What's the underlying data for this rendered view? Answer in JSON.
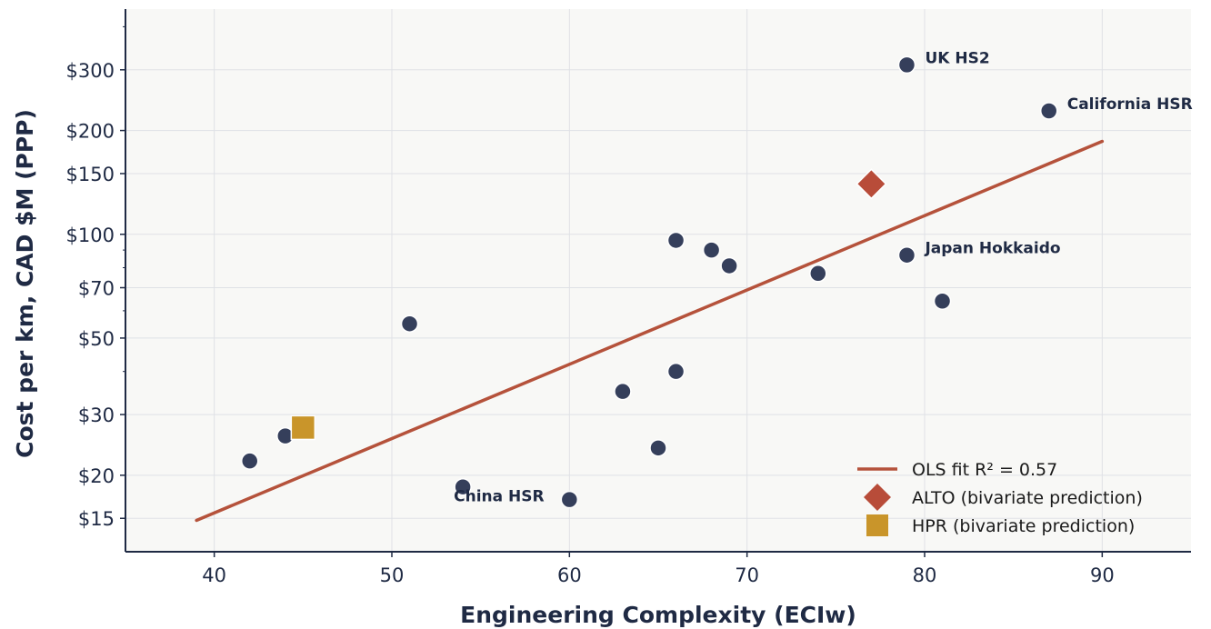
{
  "chart_data": {
    "type": "scatter",
    "title": "",
    "xlabel": "Engineering Complexity  (ECIw)",
    "ylabel": "Cost per km,  CAD $M (PPP)",
    "xlim": [
      35,
      95
    ],
    "ylim": [
      12,
      450
    ],
    "yscale": "log",
    "grid": true,
    "x_ticks": [
      40,
      50,
      60,
      70,
      80,
      90
    ],
    "x_tick_labels": [
      "40",
      "50",
      "60",
      "70",
      "80",
      "90"
    ],
    "y_ticks": [
      15,
      20,
      30,
      50,
      70,
      100,
      150,
      200,
      300
    ],
    "y_tick_labels": [
      "$15",
      "$20",
      "$30",
      "$50",
      "$70",
      "$100",
      "$150",
      "$200",
      "$300"
    ],
    "series": [
      {
        "type": "scatter",
        "color": "#353f5b",
        "points": [
          {
            "x": 42,
            "y": 22
          },
          {
            "x": 44,
            "y": 26
          },
          {
            "x": 51,
            "y": 55
          },
          {
            "x": 54,
            "y": 18.5,
            "label": "China HSR"
          },
          {
            "x": 60,
            "y": 17
          },
          {
            "x": 63,
            "y": 35
          },
          {
            "x": 65,
            "y": 24
          },
          {
            "x": 66,
            "y": 40
          },
          {
            "x": 66,
            "y": 96
          },
          {
            "x": 68,
            "y": 90
          },
          {
            "x": 69,
            "y": 81
          },
          {
            "x": 74,
            "y": 77
          },
          {
            "x": 79,
            "y": 87,
            "label": "Japan Hokkaido"
          },
          {
            "x": 79,
            "y": 310,
            "label": "UK HS2"
          },
          {
            "x": 81,
            "y": 64
          },
          {
            "x": 87,
            "y": 228,
            "label": "California HSR"
          }
        ]
      },
      {
        "type": "line",
        "name": "OLS fit   R² = 0.57",
        "color": "#b5523b",
        "x": [
          39,
          90
        ],
        "y": [
          14.8,
          186
        ]
      },
      {
        "type": "marker",
        "name": "ALTO  (bivariate prediction)",
        "shape": "diamond",
        "color": "#b84c39",
        "x": [
          77
        ],
        "y": [
          140
        ]
      },
      {
        "type": "marker",
        "name": "HPR   (bivariate prediction)",
        "shape": "square",
        "color": "#c9952a",
        "x": [
          45
        ],
        "y": [
          27.5
        ]
      }
    ],
    "legend_position": "lower-right"
  }
}
